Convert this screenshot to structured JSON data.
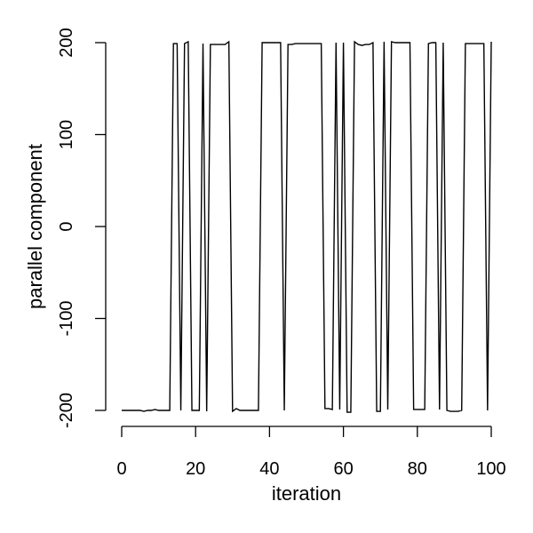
{
  "chart_data": {
    "type": "line",
    "title": "",
    "xlabel": "iteration",
    "ylabel": "parallel component",
    "xlim": [
      0,
      100
    ],
    "ylim": [
      -200,
      200
    ],
    "x_ticks": [
      0,
      20,
      40,
      60,
      80,
      100
    ],
    "y_ticks": [
      -200,
      -100,
      0,
      100,
      200
    ],
    "x_tick_labels": [
      "0",
      "20",
      "40",
      "60",
      "80",
      "100"
    ],
    "y_tick_labels": [
      "-200",
      "-100",
      "0",
      "100",
      "200"
    ],
    "grid": false,
    "legend": "none",
    "line_color": "#000000",
    "x": [
      0,
      1,
      2,
      3,
      4,
      5,
      6,
      7,
      8,
      9,
      10,
      11,
      12,
      13,
      14,
      15,
      16,
      17,
      18,
      19,
      20,
      21,
      22,
      23,
      24,
      25,
      26,
      27,
      28,
      29,
      30,
      31,
      32,
      33,
      34,
      35,
      36,
      37,
      38,
      39,
      40,
      41,
      42,
      43,
      44,
      45,
      46,
      47,
      48,
      49,
      50,
      51,
      52,
      53,
      54,
      55,
      56,
      57,
      58,
      59,
      60,
      61,
      62,
      63,
      64,
      65,
      66,
      67,
      68,
      69,
      70,
      71,
      72,
      73,
      74,
      75,
      76,
      77,
      78,
      79,
      80,
      81,
      82,
      83,
      84,
      85,
      86,
      87,
      88,
      89,
      90,
      91,
      92,
      93,
      94,
      95,
      96,
      97,
      98,
      99,
      100
    ],
    "y": [
      -200,
      -200,
      -200,
      -200,
      -200,
      -200,
      -201,
      -200,
      -200,
      -199,
      -200,
      -200,
      -200,
      -200,
      199,
      199,
      -200,
      199,
      201,
      -200,
      -200,
      -200,
      199,
      -201,
      198,
      198,
      198,
      198,
      198,
      201,
      -201,
      -198,
      -200,
      -200,
      -200,
      -200,
      -200,
      -200,
      200,
      200,
      200,
      200,
      200,
      200,
      -200,
      198,
      198,
      199,
      199,
      199,
      199,
      199,
      199,
      199,
      199,
      -198,
      -198,
      -199,
      200,
      -199,
      200,
      -202,
      -202,
      201,
      198,
      197,
      198,
      198,
      200,
      -201,
      -201,
      201,
      -199,
      201,
      200,
      200,
      200,
      200,
      200,
      -199,
      -199,
      -199,
      -199,
      199,
      200,
      200,
      -199,
      200,
      -200,
      -201,
      -201,
      -201,
      -200,
      199,
      199,
      199,
      199,
      199,
      199,
      -200,
      201
    ]
  }
}
